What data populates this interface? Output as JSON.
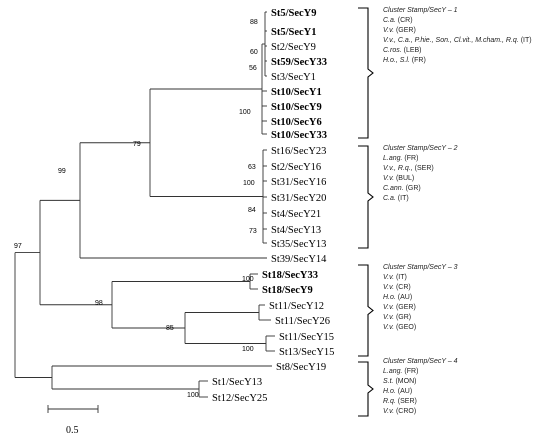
{
  "taxa": [
    {
      "label": "St5/SecY9",
      "bold": true
    },
    {
      "label": "St5/SecY1",
      "bold": true
    },
    {
      "label": "St2/SecY9",
      "bold": false
    },
    {
      "label": "St59/SecY33",
      "bold": true
    },
    {
      "label": "St3/SecY1",
      "bold": false
    },
    {
      "label": "St10/SecY1",
      "bold": true
    },
    {
      "label": "St10/SecY9",
      "bold": true
    },
    {
      "label": "St10/SecY6",
      "bold": true
    },
    {
      "label": "St10/SecY33",
      "bold": true
    },
    {
      "label": "St16/SecY23",
      "bold": false
    },
    {
      "label": "St2/SecY16",
      "bold": false
    },
    {
      "label": "St31/SecY16",
      "bold": false
    },
    {
      "label": "St31/SecY20",
      "bold": false
    },
    {
      "label": "St4/SecY21",
      "bold": false
    },
    {
      "label": "St4/SecY13",
      "bold": false
    },
    {
      "label": "St35/SecY13",
      "bold": false
    },
    {
      "label": "St39/SecY14",
      "bold": false
    },
    {
      "label": "St18/SecY33",
      "bold": true
    },
    {
      "label": "St18/SecY9",
      "bold": true
    },
    {
      "label": "St11/SecY12",
      "bold": false
    },
    {
      "label": "St11/SecY26",
      "bold": false
    },
    {
      "label": "St11/SecY15",
      "bold": false
    },
    {
      "label": "St13/SecY15",
      "bold": false
    },
    {
      "label": "St8/SecY19",
      "bold": false
    },
    {
      "label": "St1/SecY13",
      "bold": false
    },
    {
      "label": "St12/SecY25",
      "bold": false
    }
  ],
  "bootstrap": [
    "88",
    "60",
    "56",
    "100",
    "79",
    "63",
    "100",
    "84",
    "73",
    "99",
    "100",
    "85",
    "100",
    "98",
    "97",
    "100"
  ],
  "scale_bar": {
    "label": "0.5"
  },
  "clusters": [
    {
      "title": "Cluster Stamp/SecY – 1",
      "lines": [
        [
          "C.a.",
          " (CR)"
        ],
        [
          "V.v.",
          " (GER)"
        ],
        [
          "V.v., C.a., P.hie., Son., Cl.vit., M.cham., R.q.",
          " (IT)"
        ],
        [
          "C.ros.",
          " (LEB)"
        ],
        [
          "H.o., S.l.",
          " (FR)"
        ]
      ]
    },
    {
      "title": "Cluster Stamp/SecY – 2",
      "lines": [
        [
          "L.ang.",
          " (FR)"
        ],
        [
          "V.v., R.q.,",
          " (SER)"
        ],
        [
          "V.v.",
          " (BUL)"
        ],
        [
          "C.ann.",
          " (GR)"
        ],
        [
          "C.a.",
          " (IT)"
        ]
      ]
    },
    {
      "title": "Cluster Stamp/SecY – 3",
      "lines": [
        [
          "V.v.",
          " (IT)"
        ],
        [
          "V.v.",
          " (CR)"
        ],
        [
          "H.o.",
          " (AU)"
        ],
        [
          "V.v.",
          " (GER)"
        ],
        [
          "V.v.",
          " (GR)"
        ],
        [
          "V.v.",
          " (GEO)"
        ]
      ]
    },
    {
      "title": "Cluster Stamp/SecY – 4",
      "lines": [
        [
          "L.ang.",
          " (FR)"
        ],
        [
          "S.t.",
          " (MON)"
        ],
        [
          "H.o.",
          " (AU)"
        ],
        [
          "R.q.",
          " (SER)"
        ],
        [
          "V.v.",
          " (CRO)"
        ]
      ]
    }
  ],
  "colors": {
    "branch": "#333333",
    "text": "#000000"
  }
}
